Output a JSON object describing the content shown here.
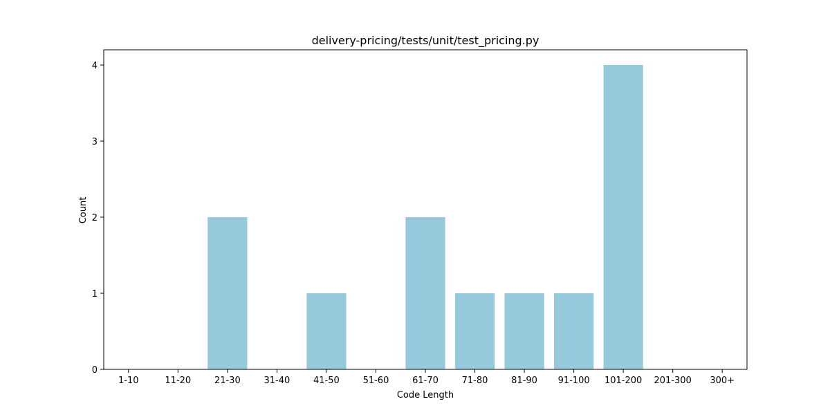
{
  "chart_data": {
    "type": "bar",
    "title": "delivery-pricing/tests/unit/test_pricing.py",
    "xlabel": "Code Length",
    "ylabel": "Count",
    "categories": [
      "1-10",
      "11-20",
      "21-30",
      "31-40",
      "41-50",
      "51-60",
      "61-70",
      "71-80",
      "81-90",
      "91-100",
      "101-200",
      "201-300",
      "300+"
    ],
    "values": [
      0,
      0,
      2,
      0,
      1,
      0,
      2,
      1,
      1,
      1,
      4,
      0,
      0
    ],
    "ylim": [
      0,
      4.2
    ],
    "yticks": [
      "0",
      "1",
      "2",
      "3",
      "4"
    ],
    "grid": false,
    "bar_color": "#96c9dc"
  }
}
